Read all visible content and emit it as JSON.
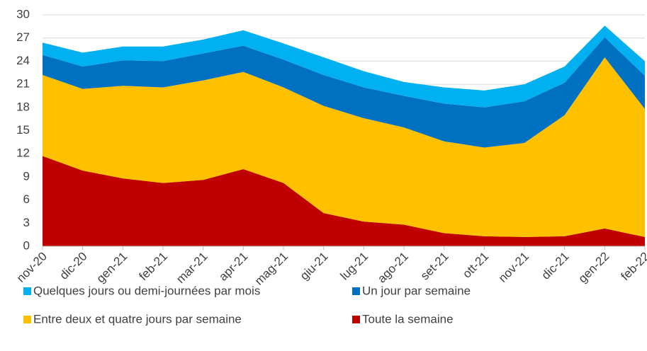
{
  "chart_data": {
    "type": "stacked-area",
    "categories": [
      "nov-20",
      "dic-20",
      "gen-21",
      "feb-21",
      "mar-21",
      "apr-21",
      "mag-21",
      "giu-21",
      "lug-21",
      "ago-21",
      "set-21",
      "ott-21",
      "nov-21",
      "dic-21",
      "gen-22",
      "feb-22"
    ],
    "series": [
      {
        "name": "Toute la semaine",
        "color": "#c00000",
        "values": [
          11.7,
          9.8,
          8.8,
          8.2,
          8.6,
          10.0,
          8.2,
          4.3,
          3.2,
          2.8,
          1.7,
          1.3,
          1.2,
          1.3,
          2.3,
          1.2
        ]
      },
      {
        "name": "Entre deux et quatre jours par semaine",
        "color": "#ffc000",
        "values": [
          10.5,
          10.6,
          12.0,
          12.4,
          12.9,
          12.6,
          12.4,
          13.9,
          13.4,
          12.6,
          11.9,
          11.5,
          12.2,
          15.7,
          22.2,
          16.6
        ]
      },
      {
        "name": "Un jour par semaine",
        "color": "#0070c0",
        "values": [
          2.6,
          2.9,
          3.3,
          3.4,
          3.5,
          3.4,
          3.6,
          4.0,
          4.0,
          4.1,
          4.9,
          5.2,
          5.4,
          4.2,
          2.6,
          4.3
        ]
      },
      {
        "name": "Quelques jours ou demi-journées par mois",
        "color": "#00b0f0",
        "values": [
          1.6,
          1.8,
          1.8,
          1.9,
          1.8,
          2.0,
          2.1,
          2.3,
          2.1,
          1.8,
          2.1,
          2.2,
          2.2,
          2.1,
          1.5,
          1.9
        ]
      }
    ],
    "ylim": [
      0,
      30
    ],
    "yticks": [
      0,
      3,
      6,
      9,
      12,
      15,
      18,
      21,
      24,
      27,
      30
    ],
    "grid": true
  }
}
